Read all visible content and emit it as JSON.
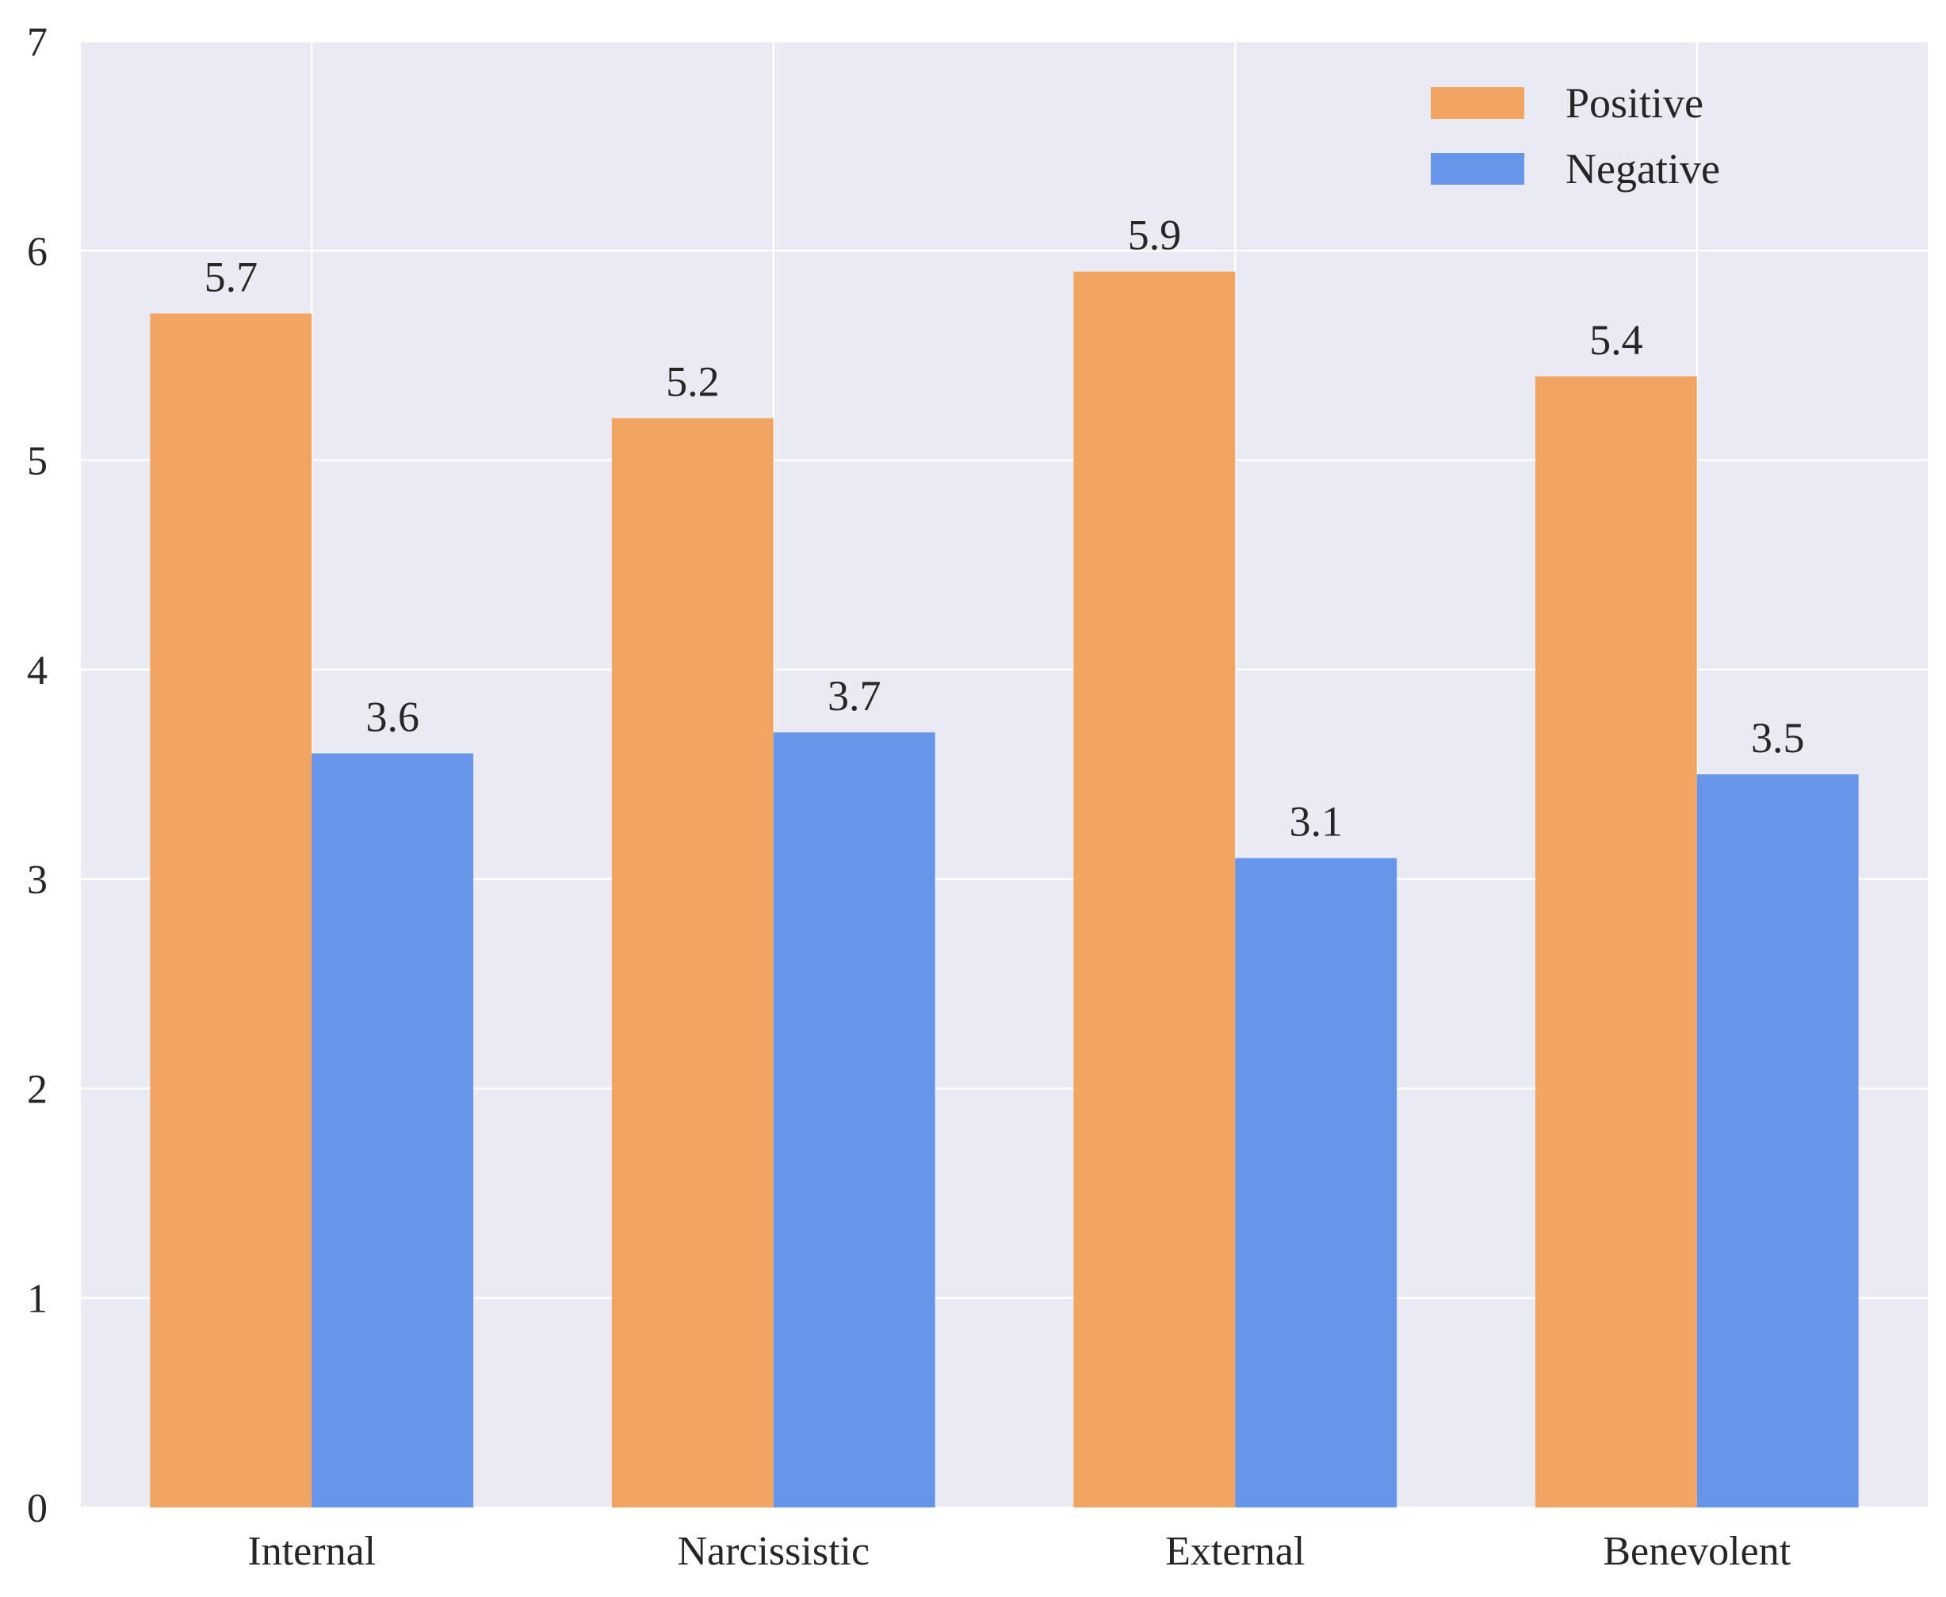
{
  "chart_data": {
    "type": "bar",
    "categories": [
      "Internal",
      "Narcissistic",
      "External",
      "Benevolent"
    ],
    "series": [
      {
        "name": "Positive",
        "values": [
          5.7,
          5.2,
          5.9,
          5.4
        ],
        "color": "#f2a463"
      },
      {
        "name": "Negative",
        "values": [
          3.6,
          3.7,
          3.1,
          3.5
        ],
        "color": "#6695e9"
      }
    ],
    "data_labels": [
      [
        "5.7",
        "5.2",
        "5.9",
        "5.4"
      ],
      [
        "3.6",
        "3.7",
        "3.1",
        "3.5"
      ]
    ],
    "y_ticks": [
      "0",
      "1",
      "2",
      "3",
      "4",
      "5",
      "6",
      "7"
    ],
    "ylim": [
      0,
      7
    ],
    "grid": true,
    "legend_position": "top-right",
    "background_color": "#eaeaf2",
    "title": "",
    "xlabel": "",
    "ylabel": ""
  }
}
